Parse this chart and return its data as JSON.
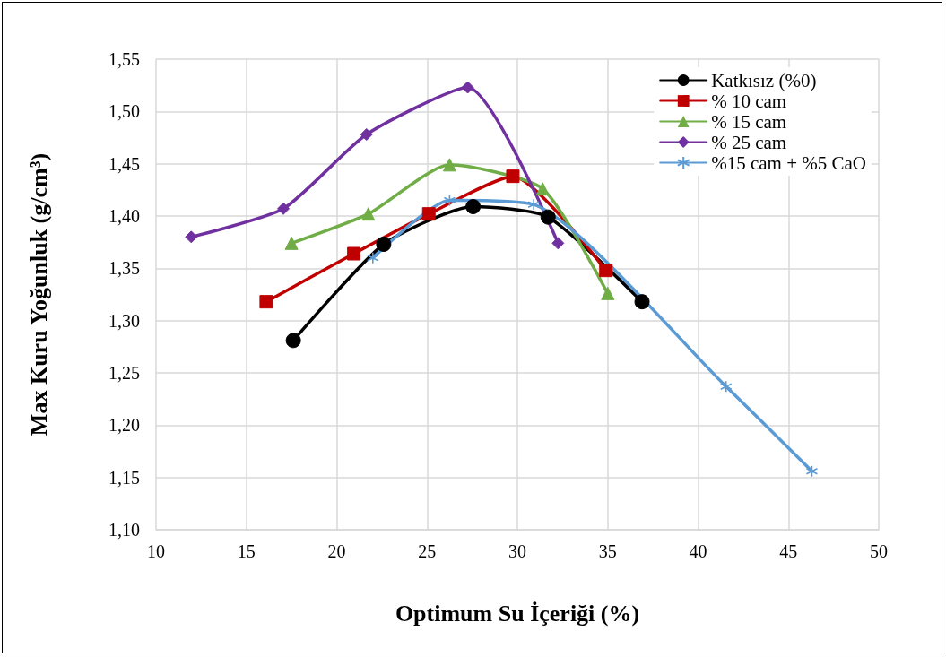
{
  "chart_data": {
    "type": "line",
    "xlabel": "Optimum Su İçeriği (%)",
    "ylabel": "Max Kuru Yoğunluk (g/cm³)",
    "xlim": [
      10,
      50
    ],
    "xticks": [
      10,
      15,
      20,
      25,
      30,
      35,
      40,
      45,
      50
    ],
    "ylim": [
      1.1,
      1.55
    ],
    "yticks": [
      {
        "value": 1.1,
        "label": "1,10"
      },
      {
        "value": 1.15,
        "label": "1,15"
      },
      {
        "value": 1.2,
        "label": "1,20"
      },
      {
        "value": 1.25,
        "label": "1,25"
      },
      {
        "value": 1.3,
        "label": "1,30"
      },
      {
        "value": 1.35,
        "label": "1,35"
      },
      {
        "value": 1.4,
        "label": "1,40"
      },
      {
        "value": 1.45,
        "label": "1,45"
      },
      {
        "value": 1.5,
        "label": "1,50"
      },
      {
        "value": 1.55,
        "label": "1,55"
      }
    ],
    "grid": true,
    "legend": "top right",
    "series": [
      {
        "name": "Katkısız (%0)",
        "color": "#000000",
        "marker": "circle",
        "x": [
          17.6,
          22.6,
          27.55,
          31.7,
          36.9
        ],
        "values": [
          1.281,
          1.373,
          1.409,
          1.399,
          1.318
        ]
      },
      {
        "name": "% 10 cam",
        "color": "#c00000",
        "marker": "square",
        "x": [
          16.1,
          20.95,
          25.1,
          29.75,
          34.9
        ],
        "values": [
          1.318,
          1.364,
          1.402,
          1.438,
          1.348
        ]
      },
      {
        "name": "% 15 cam",
        "color": "#70ad47",
        "marker": "triangle",
        "x": [
          17.5,
          21.75,
          26.25,
          31.4,
          35.0
        ],
        "values": [
          1.374,
          1.402,
          1.449,
          1.426,
          1.326
        ]
      },
      {
        "name": "% 25 cam",
        "color": "#7030a0",
        "marker": "diamond",
        "x": [
          11.95,
          17.05,
          21.65,
          27.25,
          32.25
        ],
        "values": [
          1.38,
          1.407,
          1.478,
          1.523,
          1.374
        ]
      },
      {
        "name": "%15 cam + %5 CaO",
        "color": "#5b9bd5",
        "marker": "cross",
        "x": [
          22.0,
          26.25,
          30.9,
          41.55,
          46.3
        ],
        "values": [
          1.36,
          1.415,
          1.411,
          1.237,
          1.156
        ]
      }
    ]
  }
}
